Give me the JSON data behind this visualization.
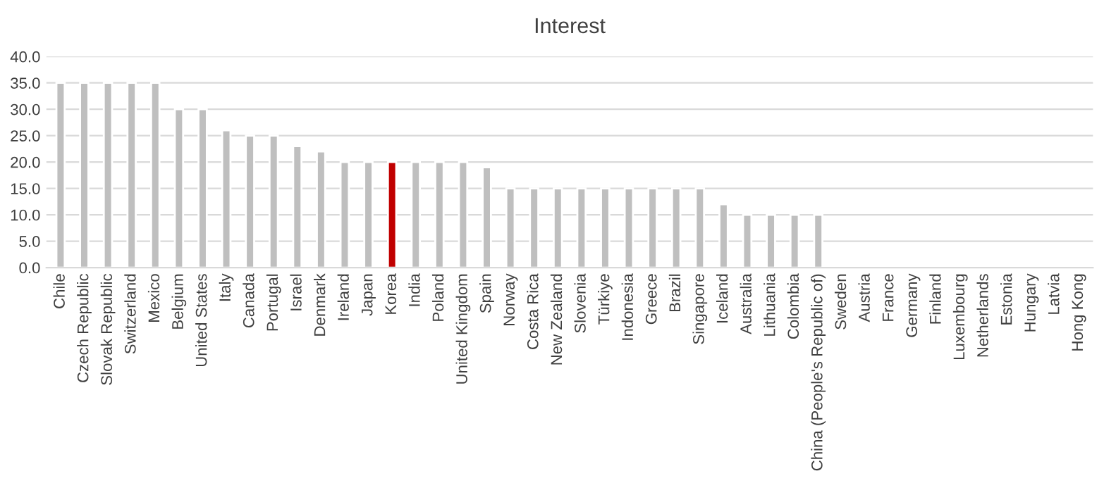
{
  "chart_data": {
    "type": "bar",
    "title": "Interest",
    "categories": [
      "Chile",
      "Czech Republic",
      "Slovak Republic",
      "Switzerland",
      "Mexico",
      "Belgium",
      "United States",
      "Italy",
      "Canada",
      "Portugal",
      "Israel",
      "Denmark",
      "Ireland",
      "Japan",
      "Korea",
      "India",
      "Poland",
      "United Kingdom",
      "Spain",
      "Norway",
      "Costa Rica",
      "New Zealand",
      "Slovenia",
      "Türkiye",
      "Indonesia",
      "Greece",
      "Brazil",
      "Singapore",
      "Iceland",
      "Australia",
      "Lithuania",
      "Colombia",
      "China (People's Republic of)",
      "Sweden",
      "Austria",
      "France",
      "Germany",
      "Finland",
      "Luxembourg",
      "Netherlands",
      "Estonia",
      "Hungary",
      "Latvia",
      "Hong Kong"
    ],
    "values": [
      35,
      35,
      35,
      35,
      35,
      30,
      30,
      26,
      25,
      25,
      23,
      22,
      20,
      20,
      20,
      20,
      20,
      20,
      19,
      15,
      15,
      15,
      15,
      15,
      15,
      15,
      15,
      15,
      12,
      10,
      10,
      10,
      10,
      null,
      null,
      null,
      null,
      null,
      null,
      null,
      null,
      null,
      null,
      null
    ],
    "colors": [
      "#bfbfbf",
      "#bfbfbf",
      "#bfbfbf",
      "#bfbfbf",
      "#bfbfbf",
      "#bfbfbf",
      "#bfbfbf",
      "#bfbfbf",
      "#bfbfbf",
      "#bfbfbf",
      "#bfbfbf",
      "#bfbfbf",
      "#bfbfbf",
      "#bfbfbf",
      "#c00000",
      "#bfbfbf",
      "#bfbfbf",
      "#bfbfbf",
      "#bfbfbf",
      "#bfbfbf",
      "#bfbfbf",
      "#bfbfbf",
      "#bfbfbf",
      "#bfbfbf",
      "#bfbfbf",
      "#bfbfbf",
      "#bfbfbf",
      "#bfbfbf",
      "#bfbfbf",
      "#bfbfbf",
      "#bfbfbf",
      "#bfbfbf",
      "#bfbfbf",
      null,
      null,
      null,
      null,
      null,
      null,
      null,
      null,
      null,
      null,
      null
    ],
    "ylim": [
      0,
      40
    ],
    "yticks": [
      {
        "value": 0,
        "label": "0.0"
      },
      {
        "value": 5,
        "label": "5.0"
      },
      {
        "value": 10,
        "label": "10.0"
      },
      {
        "value": 15,
        "label": "15.0"
      },
      {
        "value": 20,
        "label": "20.0"
      },
      {
        "value": 25,
        "label": "25.0"
      },
      {
        "value": 30,
        "label": "30.0"
      },
      {
        "value": 35,
        "label": "35.0"
      },
      {
        "value": 40,
        "label": "40.0"
      }
    ],
    "grid": "y"
  }
}
